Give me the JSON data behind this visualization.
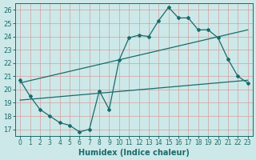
{
  "xlabel": "Humidex (Indice chaleur)",
  "bg_color": "#cde8e8",
  "line_color": "#1a6b6b",
  "grid_color": "#d4a0a0",
  "xlim": [
    -0.5,
    23.5
  ],
  "ylim": [
    16.5,
    26.5
  ],
  "xticks": [
    0,
    1,
    2,
    3,
    4,
    5,
    6,
    7,
    8,
    9,
    10,
    11,
    12,
    13,
    14,
    15,
    16,
    17,
    18,
    19,
    20,
    21,
    22,
    23
  ],
  "yticks": [
    17,
    18,
    19,
    20,
    21,
    22,
    23,
    24,
    25,
    26
  ],
  "line1_x": [
    0,
    1,
    2,
    3,
    4,
    5,
    6,
    7,
    8,
    9,
    10,
    11,
    12,
    13,
    14,
    15,
    16,
    17,
    18,
    19,
    20,
    21,
    22,
    23
  ],
  "line1_y": [
    20.7,
    19.5,
    18.5,
    18.0,
    17.5,
    17.3,
    16.8,
    17.0,
    19.9,
    18.5,
    22.2,
    23.9,
    24.1,
    24.0,
    25.2,
    26.2,
    25.4,
    25.4,
    24.5,
    24.5,
    23.9,
    22.3,
    21.0,
    20.5
  ],
  "line2_x": [
    0,
    23
  ],
  "line2_y": [
    20.5,
    24.5
  ],
  "line3_x": [
    0,
    23
  ],
  "line3_y": [
    19.2,
    20.7
  ]
}
